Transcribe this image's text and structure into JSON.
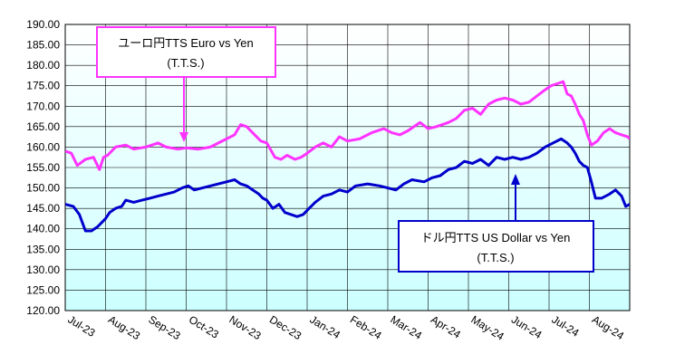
{
  "chart_data": {
    "type": "line",
    "title": "",
    "xlabel": "",
    "ylabel": "",
    "ylim": [
      120,
      190
    ],
    "y_ticks": [
      "190.00",
      "185.00",
      "180.00",
      "175.00",
      "170.00",
      "165.00",
      "160.00",
      "155.00",
      "150.00",
      "145.00",
      "140.00",
      "135.00",
      "130.00",
      "125.00",
      "120.00"
    ],
    "x_ticks": [
      "Jul-23",
      "Aug-23",
      "Sep-23",
      "Oct-23",
      "Nov-23",
      "Dec-23",
      "Jan-24",
      "Feb-24",
      "Mar-24",
      "Apr-24",
      "May-24",
      "Jun-24",
      "Jul-24",
      "Aug-24"
    ],
    "grid": true,
    "colors": {
      "euro": "#ff33ff",
      "usd": "#0000cc",
      "grid": "#000000",
      "plot_bg_top": "#ffffff",
      "plot_bg_bottom": "#ccffff"
    },
    "series": [
      {
        "name": "ユーロ円TTS Euro vs Yen",
        "color": "#ff33ff",
        "values": [
          [
            0,
            159.0
          ],
          [
            0.15,
            158.5
          ],
          [
            0.3,
            155.5
          ],
          [
            0.5,
            157.0
          ],
          [
            0.7,
            157.5
          ],
          [
            0.85,
            154.5
          ],
          [
            0.95,
            157.5
          ],
          [
            1.05,
            158.0
          ],
          [
            1.25,
            160.0
          ],
          [
            1.5,
            160.5
          ],
          [
            1.7,
            159.5
          ],
          [
            2.0,
            160.0
          ],
          [
            2.3,
            161.0
          ],
          [
            2.5,
            160.0
          ],
          [
            2.8,
            159.5
          ],
          [
            3.0,
            159.8
          ],
          [
            3.3,
            159.5
          ],
          [
            3.6,
            160.0
          ],
          [
            3.8,
            161.0
          ],
          [
            4.0,
            162.0
          ],
          [
            4.2,
            163.0
          ],
          [
            4.35,
            165.5
          ],
          [
            4.5,
            165.0
          ],
          [
            4.7,
            163.0
          ],
          [
            4.85,
            161.5
          ],
          [
            5.0,
            161.0
          ],
          [
            5.2,
            157.5
          ],
          [
            5.35,
            157.0
          ],
          [
            5.5,
            158.0
          ],
          [
            5.7,
            157.0
          ],
          [
            5.85,
            157.5
          ],
          [
            6.0,
            158.5
          ],
          [
            6.2,
            160.0
          ],
          [
            6.4,
            161.0
          ],
          [
            6.6,
            160.0
          ],
          [
            6.8,
            162.5
          ],
          [
            7.0,
            161.5
          ],
          [
            7.3,
            162.0
          ],
          [
            7.6,
            163.5
          ],
          [
            7.9,
            164.5
          ],
          [
            8.1,
            163.5
          ],
          [
            8.3,
            163.0
          ],
          [
            8.5,
            164.0
          ],
          [
            8.8,
            166.0
          ],
          [
            9.0,
            164.5
          ],
          [
            9.2,
            165.0
          ],
          [
            9.5,
            166.0
          ],
          [
            9.7,
            167.0
          ],
          [
            9.9,
            169.0
          ],
          [
            10.1,
            169.5
          ],
          [
            10.3,
            168.0
          ],
          [
            10.5,
            170.5
          ],
          [
            10.7,
            171.5
          ],
          [
            10.9,
            172.0
          ],
          [
            11.1,
            171.5
          ],
          [
            11.3,
            170.5
          ],
          [
            11.5,
            171.0
          ],
          [
            11.7,
            172.5
          ],
          [
            11.9,
            174.0
          ],
          [
            12.05,
            175.0
          ],
          [
            12.2,
            175.5
          ],
          [
            12.35,
            176.0
          ],
          [
            12.45,
            173.0
          ],
          [
            12.55,
            172.5
          ],
          [
            12.65,
            170.5
          ],
          [
            12.75,
            168.0
          ],
          [
            12.85,
            166.5
          ],
          [
            12.95,
            163.0
          ],
          [
            13.05,
            160.5
          ],
          [
            13.2,
            161.5
          ],
          [
            13.35,
            163.5
          ],
          [
            13.5,
            164.5
          ],
          [
            13.65,
            163.5
          ],
          [
            13.8,
            163.0
          ],
          [
            13.95,
            162.5
          ],
          [
            14.0,
            162.0
          ]
        ]
      },
      {
        "name": "ドル円TTS  US Dollar vs Yen",
        "color": "#0000cc",
        "values": [
          [
            0,
            146.0
          ],
          [
            0.2,
            145.5
          ],
          [
            0.35,
            143.5
          ],
          [
            0.5,
            139.5
          ],
          [
            0.65,
            139.5
          ],
          [
            0.8,
            140.5
          ],
          [
            0.9,
            141.5
          ],
          [
            1.0,
            142.5
          ],
          [
            1.1,
            144.0
          ],
          [
            1.25,
            145.0
          ],
          [
            1.4,
            145.5
          ],
          [
            1.5,
            147.0
          ],
          [
            1.7,
            146.5
          ],
          [
            1.9,
            147.0
          ],
          [
            2.1,
            147.5
          ],
          [
            2.3,
            148.0
          ],
          [
            2.5,
            148.5
          ],
          [
            2.7,
            149.0
          ],
          [
            2.9,
            150.0
          ],
          [
            3.05,
            150.5
          ],
          [
            3.2,
            149.5
          ],
          [
            3.4,
            150.0
          ],
          [
            3.6,
            150.5
          ],
          [
            3.8,
            151.0
          ],
          [
            4.0,
            151.5
          ],
          [
            4.2,
            152.0
          ],
          [
            4.35,
            151.0
          ],
          [
            4.5,
            150.5
          ],
          [
            4.65,
            149.5
          ],
          [
            4.8,
            148.5
          ],
          [
            4.9,
            147.5
          ],
          [
            5.0,
            147.0
          ],
          [
            5.15,
            145.0
          ],
          [
            5.3,
            146.0
          ],
          [
            5.45,
            144.0
          ],
          [
            5.6,
            143.5
          ],
          [
            5.75,
            143.0
          ],
          [
            5.9,
            143.5
          ],
          [
            6.05,
            145.0
          ],
          [
            6.2,
            146.5
          ],
          [
            6.4,
            148.0
          ],
          [
            6.6,
            148.5
          ],
          [
            6.8,
            149.5
          ],
          [
            7.0,
            149.0
          ],
          [
            7.2,
            150.5
          ],
          [
            7.5,
            151.0
          ],
          [
            7.8,
            150.5
          ],
          [
            8.0,
            150.0
          ],
          [
            8.2,
            149.5
          ],
          [
            8.4,
            151.0
          ],
          [
            8.6,
            152.0
          ],
          [
            8.9,
            151.5
          ],
          [
            9.1,
            152.5
          ],
          [
            9.3,
            153.0
          ],
          [
            9.5,
            154.5
          ],
          [
            9.7,
            155.0
          ],
          [
            9.9,
            156.5
          ],
          [
            10.1,
            156.0
          ],
          [
            10.3,
            157.0
          ],
          [
            10.5,
            155.5
          ],
          [
            10.7,
            157.5
          ],
          [
            10.9,
            157.0
          ],
          [
            11.1,
            157.5
          ],
          [
            11.3,
            157.0
          ],
          [
            11.5,
            157.5
          ],
          [
            11.7,
            158.5
          ],
          [
            11.9,
            160.0
          ],
          [
            12.1,
            161.0
          ],
          [
            12.3,
            162.0
          ],
          [
            12.45,
            161.0
          ],
          [
            12.55,
            160.0
          ],
          [
            12.65,
            158.5
          ],
          [
            12.75,
            156.5
          ],
          [
            12.85,
            155.5
          ],
          [
            12.95,
            155.0
          ],
          [
            13.05,
            151.5
          ],
          [
            13.15,
            147.5
          ],
          [
            13.3,
            147.5
          ],
          [
            13.5,
            148.5
          ],
          [
            13.65,
            149.5
          ],
          [
            13.8,
            148.0
          ],
          [
            13.9,
            145.5
          ],
          [
            14.0,
            146.0
          ]
        ]
      }
    ],
    "annotations": [
      {
        "id": "euro",
        "lines": [
          "ユーロ円TTS  Euro vs Yen",
          "(T.T.S.)"
        ]
      },
      {
        "id": "usd",
        "lines": [
          "ドル円TTS  US Dollar vs Yen",
          "(T.T.S.)"
        ]
      }
    ]
  }
}
